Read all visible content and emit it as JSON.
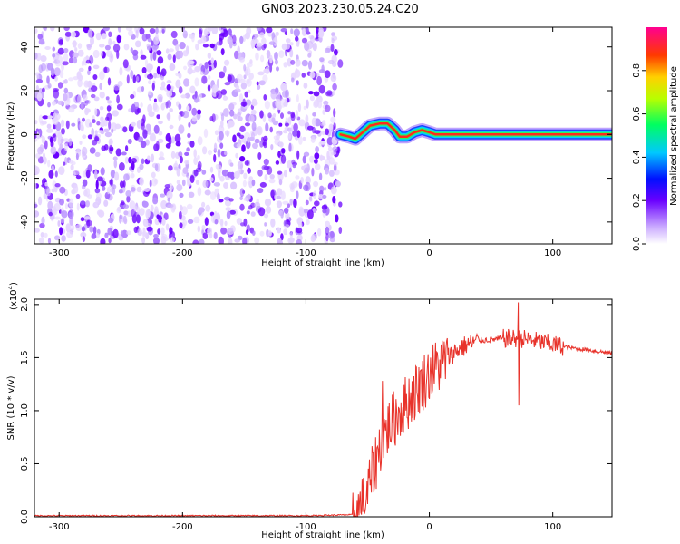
{
  "chart_data": {
    "title": "GN03.2023.230.05.24.C20",
    "panels": [
      {
        "type": "heatmap",
        "xlabel": "Height of straight line (km)",
        "ylabel": "Frequency (Hz)",
        "xlim": [
          -320,
          148
        ],
        "ylim": [
          -50,
          49
        ],
        "x_ticks": [
          -300,
          -200,
          -100,
          0,
          100
        ],
        "y_ticks": [
          -40,
          -20,
          0,
          20,
          40
        ],
        "noise_region_x": [
          -320,
          -72
        ],
        "ridge": [
          {
            "x": -72,
            "y": 0
          },
          {
            "x": -65,
            "y": -1
          },
          {
            "x": -60,
            "y": -2
          },
          {
            "x": -54,
            "y": 1
          },
          {
            "x": -48,
            "y": 4
          },
          {
            "x": -40,
            "y": 5
          },
          {
            "x": -34,
            "y": 5
          },
          {
            "x": -28,
            "y": 2
          },
          {
            "x": -24,
            "y": -1
          },
          {
            "x": -18,
            "y": -1
          },
          {
            "x": -12,
            "y": 1
          },
          {
            "x": -6,
            "y": 2
          },
          {
            "x": 0,
            "y": 1
          },
          {
            "x": 5,
            "y": 0
          },
          {
            "x": 148,
            "y": 0
          }
        ],
        "colorbar": {
          "label": "Normalized spectral amplitude",
          "ticks": [
            0.0,
            0.2,
            0.4,
            0.6,
            0.8
          ],
          "tick_labels": [
            "0.0",
            "0.2",
            "0.4",
            "0.6",
            "0.8"
          ],
          "range": [
            0,
            1
          ]
        }
      },
      {
        "type": "line",
        "xlabel": "Height of straight line (km)",
        "ylabel": "SNR (10 * v/v)",
        "y_multiplier": "(x10",
        "y_multiplier_exp": "4",
        "y_multiplier_close": ")",
        "xlim": [
          -320,
          148
        ],
        "ylim": [
          0,
          2.05
        ],
        "x_ticks": [
          -300,
          -200,
          -100,
          0,
          100
        ],
        "y_ticks": [
          0.0,
          0.5,
          1.0,
          1.5,
          2.0
        ],
        "y_tick_labels": [
          "0.0",
          "0.5",
          "1.0",
          "1.5",
          "2.0"
        ],
        "series": [
          {
            "color": "#e8322a",
            "points": [
              [
                -320,
                0.01
              ],
              [
                -100,
                0.01
              ],
              [
                -60,
                0.02
              ],
              [
                -52,
                0.15
              ],
              [
                -45,
                0.45
              ],
              [
                -38,
                0.75
              ],
              [
                -30,
                0.9
              ],
              [
                -20,
                1.05
              ],
              [
                -10,
                1.2
              ],
              [
                0,
                1.35
              ],
              [
                10,
                1.45
              ],
              [
                20,
                1.55
              ],
              [
                30,
                1.62
              ],
              [
                40,
                1.66
              ],
              [
                60,
                1.68
              ],
              [
                75,
                1.68
              ],
              [
                90,
                1.65
              ],
              [
                110,
                1.6
              ],
              [
                130,
                1.57
              ],
              [
                148,
                1.54
              ]
            ],
            "spikes": [
              {
                "x": 72,
                "y": 2.02
              },
              {
                "x": 72.5,
                "y": 1.05
              },
              {
                "x": -38,
                "y": 1.28
              },
              {
                "x": -58,
                "y": 0.0
              }
            ]
          }
        ]
      }
    ]
  }
}
